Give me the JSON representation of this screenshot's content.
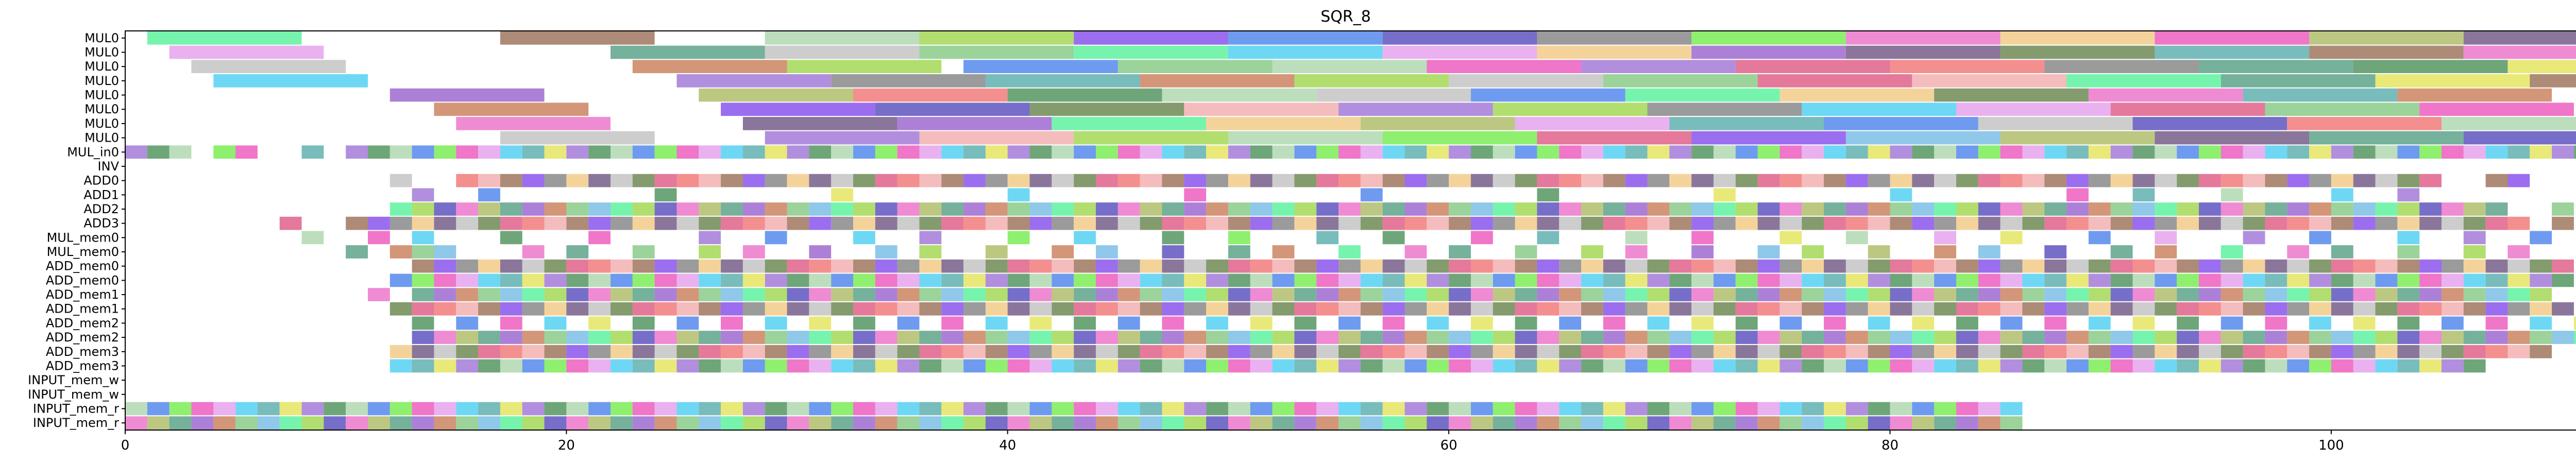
{
  "chart_data": {
    "type": "gantt",
    "title": "SQR_8",
    "xlabel": "",
    "ylabel": "",
    "xlim": [
      0,
      116
    ],
    "x_ticks": [
      0,
      20,
      40,
      60,
      80,
      100
    ],
    "grid": false,
    "legend": "none",
    "rows": [
      "MUL0",
      "MUL0",
      "MUL0",
      "MUL0",
      "MUL0",
      "MUL0",
      "MUL0",
      "MUL0",
      "MUL_in0",
      "INV",
      "ADD0",
      "ADD1",
      "ADD2",
      "ADD3",
      "MUL_mem0",
      "MUL_mem0",
      "ADD_mem0",
      "ADD_mem0",
      "ADD_mem1",
      "ADD_mem1",
      "ADD_mem2",
      "ADD_mem2",
      "ADD_mem3",
      "ADD_mem3",
      "INPUT_mem_w",
      "INPUT_mem_w",
      "INPUT_mem_r",
      "INPUT_mem_r"
    ],
    "palette": [
      "#3cf08a",
      "#8a5a3c",
      "#a0d0a0",
      "#90d030",
      "#7030e8",
      "#3070e8",
      "#3c30b0",
      "#707070",
      "#60e830",
      "#e85ac0",
      "#f0c070",
      "#e83cb0",
      "#a0b04c",
      "#5a3c70",
      "#e090e8",
      "#3a9070",
      "#b8b8b8",
      "#30c8f0",
      "#8a4ac8",
      "#507030",
      "#40a0a0",
      "#c06a40",
      "#d84070",
      "#e0e040",
      "#70c070",
      "#f06060",
      "#9060d0",
      "#60b0e0",
      "#f0a0a0",
      "#308040"
    ],
    "bars": [
      {
        "row": 0,
        "start": 1.0,
        "dur": 7.0,
        "c": 0
      },
      {
        "row": 0,
        "start": 17.0,
        "dur": 7.0,
        "c": 1
      },
      {
        "row": 0,
        "start": 29.0,
        "dur": 7.0,
        "c": 2
      },
      {
        "row": 0,
        "start": 36.0,
        "dur": 7.0,
        "c": 3
      },
      {
        "row": 0,
        "start": 43.0,
        "dur": 7.0,
        "c": 4
      },
      {
        "row": 0,
        "start": 50.0,
        "dur": 7.0,
        "c": 5
      },
      {
        "row": 0,
        "start": 57.0,
        "dur": 7.0,
        "c": 6
      },
      {
        "row": 0,
        "start": 64.0,
        "dur": 7.0,
        "c": 7
      },
      {
        "row": 0,
        "start": 71.0,
        "dur": 7.0,
        "c": 8
      },
      {
        "row": 0,
        "start": 78.0,
        "dur": 7.0,
        "c": 9
      },
      {
        "row": 0,
        "start": 85.0,
        "dur": 7.0,
        "c": 10
      },
      {
        "row": 0,
        "start": 92.0,
        "dur": 7.0,
        "c": 11
      },
      {
        "row": 0,
        "start": 99.0,
        "dur": 7.0,
        "c": 12
      },
      {
        "row": 0,
        "start": 106.0,
        "dur": 7.0,
        "c": 13
      },
      {
        "row": 1,
        "start": 2.0,
        "dur": 7.0,
        "c": 14
      },
      {
        "row": 1,
        "start": 22.0,
        "dur": 7.0,
        "c": 15
      },
      {
        "row": 1,
        "start": 29.0,
        "dur": 7.0,
        "c": 16
      },
      {
        "row": 1,
        "start": 36.0,
        "dur": 7.0,
        "c": 24
      },
      {
        "row": 1,
        "start": 43.0,
        "dur": 7.0,
        "c": 0
      },
      {
        "row": 1,
        "start": 50.0,
        "dur": 7.0,
        "c": 17
      },
      {
        "row": 1,
        "start": 57.0,
        "dur": 7.0,
        "c": 14
      },
      {
        "row": 1,
        "start": 64.0,
        "dur": 7.0,
        "c": 10
      },
      {
        "row": 1,
        "start": 71.0,
        "dur": 7.0,
        "c": 18
      },
      {
        "row": 1,
        "start": 78.0,
        "dur": 7.0,
        "c": 13
      },
      {
        "row": 1,
        "start": 85.0,
        "dur": 7.0,
        "c": 19
      },
      {
        "row": 1,
        "start": 92.0,
        "dur": 7.0,
        "c": 20
      },
      {
        "row": 1,
        "start": 99.0,
        "dur": 7.0,
        "c": 1
      },
      {
        "row": 1,
        "start": 106.0,
        "dur": 7.0,
        "c": 9
      },
      {
        "row": 2,
        "start": 3.0,
        "dur": 7.0,
        "c": 16
      },
      {
        "row": 2,
        "start": 23.0,
        "dur": 7.0,
        "c": 21
      },
      {
        "row": 2,
        "start": 30.0,
        "dur": 7.0,
        "c": 3
      },
      {
        "row": 2,
        "start": 38.0,
        "dur": 7.0,
        "c": 5
      },
      {
        "row": 2,
        "start": 45.0,
        "dur": 7.0,
        "c": 24
      },
      {
        "row": 2,
        "start": 52.0,
        "dur": 7.0,
        "c": 2
      },
      {
        "row": 2,
        "start": 59.0,
        "dur": 7.0,
        "c": 11
      },
      {
        "row": 2,
        "start": 66.0,
        "dur": 7.0,
        "c": 26
      },
      {
        "row": 2,
        "start": 73.0,
        "dur": 7.0,
        "c": 22
      },
      {
        "row": 2,
        "start": 80.0,
        "dur": 7.0,
        "c": 25
      },
      {
        "row": 2,
        "start": 87.0,
        "dur": 7.0,
        "c": 7
      },
      {
        "row": 2,
        "start": 94.0,
        "dur": 7.0,
        "c": 15
      },
      {
        "row": 2,
        "start": 101.0,
        "dur": 7.0,
        "c": 29
      },
      {
        "row": 2,
        "start": 108.0,
        "dur": 7.0,
        "c": 23
      },
      {
        "row": 3,
        "start": 4.0,
        "dur": 7.0,
        "c": 17
      },
      {
        "row": 3,
        "start": 25.0,
        "dur": 7.0,
        "c": 26
      },
      {
        "row": 3,
        "start": 32.0,
        "dur": 7.0,
        "c": 7
      },
      {
        "row": 3,
        "start": 39.0,
        "dur": 7.0,
        "c": 20
      },
      {
        "row": 3,
        "start": 46.0,
        "dur": 7.0,
        "c": 21
      },
      {
        "row": 3,
        "start": 53.0,
        "dur": 7.0,
        "c": 3
      },
      {
        "row": 3,
        "start": 60.0,
        "dur": 7.0,
        "c": 16
      },
      {
        "row": 3,
        "start": 67.0,
        "dur": 7.0,
        "c": 24
      },
      {
        "row": 3,
        "start": 74.0,
        "dur": 7.0,
        "c": 22
      },
      {
        "row": 3,
        "start": 81.0,
        "dur": 7.0,
        "c": 28
      },
      {
        "row": 3,
        "start": 88.0,
        "dur": 7.0,
        "c": 0
      },
      {
        "row": 3,
        "start": 95.0,
        "dur": 7.0,
        "c": 15
      },
      {
        "row": 3,
        "start": 102.0,
        "dur": 7.0,
        "c": 23
      },
      {
        "row": 3,
        "start": 109.0,
        "dur": 7.0,
        "c": 1
      },
      {
        "row": 4,
        "start": 12.0,
        "dur": 7.0,
        "c": 18
      },
      {
        "row": 4,
        "start": 26.0,
        "dur": 7.0,
        "c": 12
      },
      {
        "row": 4,
        "start": 33.0,
        "dur": 7.0,
        "c": 25
      },
      {
        "row": 4,
        "start": 40.0,
        "dur": 7.0,
        "c": 29
      },
      {
        "row": 4,
        "start": 47.0,
        "dur": 7.0,
        "c": 2
      },
      {
        "row": 4,
        "start": 54.0,
        "dur": 7.0,
        "c": 16
      },
      {
        "row": 4,
        "start": 61.0,
        "dur": 7.0,
        "c": 5
      },
      {
        "row": 4,
        "start": 68.0,
        "dur": 7.0,
        "c": 0
      },
      {
        "row": 4,
        "start": 75.0,
        "dur": 7.0,
        "c": 10
      },
      {
        "row": 4,
        "start": 82.0,
        "dur": 7.0,
        "c": 19
      },
      {
        "row": 4,
        "start": 89.0,
        "dur": 7.0,
        "c": 9
      },
      {
        "row": 4,
        "start": 96.0,
        "dur": 7.0,
        "c": 20
      },
      {
        "row": 4,
        "start": 103.0,
        "dur": 7.0,
        "c": 21
      },
      {
        "row": 5,
        "start": 14.0,
        "dur": 7.0,
        "c": 21
      },
      {
        "row": 5,
        "start": 27.0,
        "dur": 7.0,
        "c": 4
      },
      {
        "row": 5,
        "start": 34.0,
        "dur": 7.0,
        "c": 6
      },
      {
        "row": 5,
        "start": 41.0,
        "dur": 7.0,
        "c": 19
      },
      {
        "row": 5,
        "start": 48.0,
        "dur": 7.0,
        "c": 28
      },
      {
        "row": 5,
        "start": 55.0,
        "dur": 7.0,
        "c": 26
      },
      {
        "row": 5,
        "start": 62.0,
        "dur": 7.0,
        "c": 3
      },
      {
        "row": 5,
        "start": 69.0,
        "dur": 7.0,
        "c": 7
      },
      {
        "row": 5,
        "start": 76.0,
        "dur": 7.0,
        "c": 17
      },
      {
        "row": 5,
        "start": 83.0,
        "dur": 7.0,
        "c": 14
      },
      {
        "row": 5,
        "start": 90.0,
        "dur": 7.0,
        "c": 22
      },
      {
        "row": 5,
        "start": 97.0,
        "dur": 7.0,
        "c": 24
      },
      {
        "row": 5,
        "start": 104.0,
        "dur": 7.0,
        "c": 11
      },
      {
        "row": 6,
        "start": 15.0,
        "dur": 7.0,
        "c": 9
      },
      {
        "row": 6,
        "start": 28.0,
        "dur": 7.0,
        "c": 13
      },
      {
        "row": 6,
        "start": 35.0,
        "dur": 7.0,
        "c": 18
      },
      {
        "row": 6,
        "start": 42.0,
        "dur": 7.0,
        "c": 0
      },
      {
        "row": 6,
        "start": 49.0,
        "dur": 7.0,
        "c": 10
      },
      {
        "row": 6,
        "start": 56.0,
        "dur": 7.0,
        "c": 12
      },
      {
        "row": 6,
        "start": 63.0,
        "dur": 7.0,
        "c": 14
      },
      {
        "row": 6,
        "start": 70.0,
        "dur": 7.0,
        "c": 20
      },
      {
        "row": 6,
        "start": 77.0,
        "dur": 7.0,
        "c": 5
      },
      {
        "row": 6,
        "start": 84.0,
        "dur": 7.0,
        "c": 16
      },
      {
        "row": 6,
        "start": 91.0,
        "dur": 7.0,
        "c": 6
      },
      {
        "row": 6,
        "start": 98.0,
        "dur": 7.0,
        "c": 25
      },
      {
        "row": 6,
        "start": 105.0,
        "dur": 7.0,
        "c": 2
      },
      {
        "row": 7,
        "start": 17.0,
        "dur": 7.0,
        "c": 16
      },
      {
        "row": 7,
        "start": 29.0,
        "dur": 7.0,
        "c": 26
      },
      {
        "row": 7,
        "start": 36.0,
        "dur": 7.0,
        "c": 28
      },
      {
        "row": 7,
        "start": 43.0,
        "dur": 7.0,
        "c": 3
      },
      {
        "row": 7,
        "start": 50.0,
        "dur": 7.0,
        "c": 2
      },
      {
        "row": 7,
        "start": 57.0,
        "dur": 7.0,
        "c": 8
      },
      {
        "row": 7,
        "start": 64.0,
        "dur": 7.0,
        "c": 22
      },
      {
        "row": 7,
        "start": 71.0,
        "dur": 7.0,
        "c": 4
      },
      {
        "row": 7,
        "start": 78.0,
        "dur": 7.0,
        "c": 27
      },
      {
        "row": 7,
        "start": 85.0,
        "dur": 7.0,
        "c": 12
      },
      {
        "row": 7,
        "start": 92.0,
        "dur": 7.0,
        "c": 13
      },
      {
        "row": 7,
        "start": 99.0,
        "dur": 7.0,
        "c": 15
      },
      {
        "row": 7,
        "start": 106.0,
        "dur": 7.0,
        "c": 6
      }
    ],
    "grid_rows": {
      "rows": [
        8,
        9,
        10,
        11,
        12,
        13,
        14,
        15,
        16,
        17,
        18,
        19,
        20,
        21,
        22,
        23,
        24,
        25,
        26,
        27
      ],
      "dur": 1.0,
      "cols": [
        0,
        1,
        2,
        3,
        4,
        5,
        6,
        7,
        8,
        9,
        10,
        11,
        12,
        13,
        14,
        15,
        16,
        17,
        18,
        19,
        20,
        21,
        22,
        23,
        24,
        25,
        26,
        27,
        28,
        29,
        30,
        31,
        32,
        33,
        34,
        35,
        36,
        37,
        38,
        39,
        40,
        41,
        42,
        43,
        44,
        45,
        46,
        47,
        48,
        49,
        50,
        51,
        52,
        53,
        54,
        55,
        56,
        57,
        58,
        59,
        60,
        61,
        62,
        63,
        64,
        65,
        66,
        67,
        68,
        69,
        70,
        71,
        72,
        73,
        74,
        75,
        76,
        77,
        78,
        79,
        80,
        81,
        82,
        83,
        84,
        85,
        86,
        87,
        88,
        89,
        90,
        91,
        92,
        93,
        94,
        95,
        96,
        97,
        98,
        99,
        100,
        101,
        102,
        103,
        104,
        105,
        106,
        107,
        108,
        109,
        110,
        111,
        112
      ],
      "fill_pattern": [
        "11101100101111111111111111111111111111111111111111111111111111111111111111111111111111111111111111111111111111111",
        "00000000000000000000000000000000000000000000000000000000000000000000000000000000000000000000000000000000000000000",
        "00000000000010011111111111111111111111111111111111111111111111111111111111111111111111111111111111111111100110000",
        "00000000000001001000000010000000100000001000000010000000100000001000000010000000100000001001000100001001000000000",
        "00000000000011111111111111111111111111111111111111111111111111111111111111111111111111111111111111111111111100100",
        "00000001001111111111111111111111111111111111111111111111111111111111111111111111111111111111111111111111111110100",
        "00000000100101000100010000100100010010001001000100100010010001001000100100010010001001000100100010010001001001000",
        "00000000001011100010100100101001001010010010100100101001001010010010100100101001001010010010100100101001001010000",
        "00000000000001111111111111111111111111111111111111111111111111111111111111111111111111111111111111111111111111100",
        "00000000000011111111111111111111111111111111111111111111111111111111111111111111111111111111111111111111111111100",
        "00000000000101111111111111111111111111111111111111111111111111111111111111111111111111111111111111111111111111000",
        "00000000000011111111111111111111111111111111111111111111111111111111111111111111111111111111111111111111111111100",
        "00000000000001010101010101010101010101010101010101010101010101010101010101010101010101010101010101010101010101010",
        "00000000000001111111111111111111111111111111111111111111111111111111111111111111111111111111111111111111111111110",
        "00000000000011111111111111111111111111111111111111111111111111111111111111111111111111111111111111111111111111000",
        "00000000000011111111111111111111111111111111111111111111111111111111111111111111111111111111111111111111111000000",
        "00000000000000000000000000000000000000000000000000000000000000000000000000000000000000000000000000000000000000000",
        "00000000000000000000000000000000000000000000000000000000000000000000000000000000000000000000000000000000000000000",
        "11111111111111111111111111111111111111111111111111111111111111111111111111111111111111000000000000000000000000000",
        "11111111111111111111111111111111111111111111111111111111111111111111111111111111111111000000000000000000000000000"
      ]
    }
  }
}
